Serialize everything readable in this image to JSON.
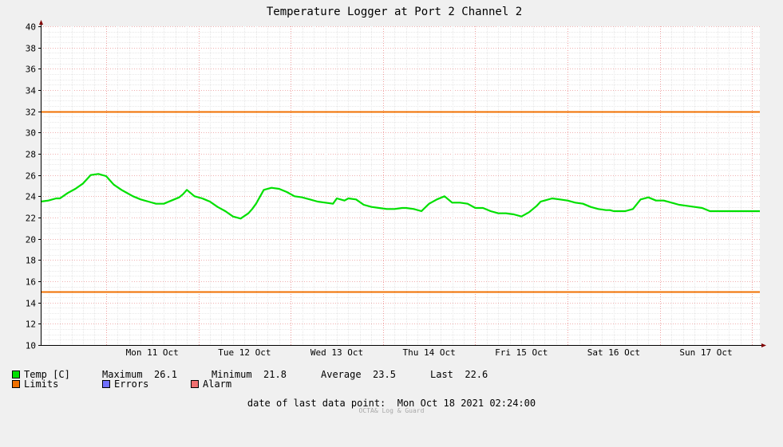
{
  "chart_data": {
    "type": "line",
    "title": "Temperature Logger at Port 2 Channel 2",
    "x_unit": "hours from Mon 11 Oct 00:00",
    "xlim": [
      -17,
      170
    ],
    "ylim": [
      10,
      40
    ],
    "y_ticks": [
      10,
      12,
      14,
      16,
      18,
      20,
      22,
      24,
      26,
      28,
      30,
      32,
      34,
      36,
      38,
      40
    ],
    "day_labels": [
      "Mon 11 Oct",
      "Tue 12 Oct",
      "Wed 13 Oct",
      "Thu 14 Oct",
      "Fri 15 Oct",
      "Sat 16 Oct",
      "Sun 17 Oct"
    ],
    "day_label_positions": [
      12,
      36,
      60,
      84,
      108,
      132,
      156
    ],
    "series": [
      {
        "name": "Temp [C]",
        "color": "#00e000",
        "x": [
          -17,
          -15,
          -13,
          -12,
          -10,
          -8,
          -6,
          -4,
          -2,
          0,
          2,
          4,
          5,
          7,
          9,
          11,
          13,
          15,
          17,
          19,
          20,
          21,
          23,
          25,
          27,
          29,
          31,
          33,
          35,
          37,
          38,
          39,
          41,
          43,
          45,
          47,
          49,
          51,
          53,
          55,
          57,
          59,
          60,
          62,
          63,
          65,
          67,
          69,
          71,
          73,
          75,
          77,
          78,
          80,
          82,
          84,
          86,
          88,
          90,
          92,
          94,
          96,
          98,
          100,
          102,
          104,
          106,
          108,
          110,
          112,
          113,
          114,
          116,
          118,
          120,
          122,
          124,
          126,
          128,
          130,
          131,
          132,
          133,
          135,
          137,
          139,
          141,
          143,
          145,
          147,
          149,
          151,
          153,
          155,
          157,
          158,
          159,
          160,
          162,
          164,
          166,
          168,
          170
        ],
        "y": [
          23.5,
          23.6,
          23.8,
          23.8,
          24.3,
          24.7,
          25.2,
          26.0,
          26.1,
          25.9,
          25.1,
          24.6,
          24.4,
          24.0,
          23.7,
          23.5,
          23.3,
          23.3,
          23.6,
          23.9,
          24.2,
          24.6,
          24.0,
          23.8,
          23.5,
          23.0,
          22.6,
          22.1,
          21.9,
          22.4,
          22.8,
          23.3,
          24.6,
          24.8,
          24.7,
          24.4,
          24.0,
          23.9,
          23.7,
          23.5,
          23.4,
          23.3,
          23.8,
          23.6,
          23.8,
          23.7,
          23.2,
          23.0,
          22.9,
          22.8,
          22.8,
          22.9,
          22.9,
          22.8,
          22.6,
          23.3,
          23.7,
          24.0,
          23.4,
          23.4,
          23.3,
          22.9,
          22.9,
          22.6,
          22.4,
          22.4,
          22.3,
          22.1,
          22.5,
          23.1,
          23.5,
          23.6,
          23.8,
          23.7,
          23.6,
          23.4,
          23.3,
          23.0,
          22.8,
          22.7,
          22.7,
          22.6,
          22.6,
          22.6,
          22.8,
          23.7,
          23.9,
          23.6,
          23.6,
          23.4,
          23.2,
          23.1,
          23.0,
          22.9,
          22.6,
          22.6,
          22.6,
          22.6,
          22.6,
          22.6,
          22.6,
          22.6,
          22.6
        ]
      }
    ],
    "limits": [
      32,
      15
    ],
    "limit_color": "#f07000",
    "grid": true
  },
  "legend": {
    "temp": {
      "label": "Temp [C]",
      "color": "#00e000"
    },
    "limits": {
      "label": "Limits",
      "color": "#f07000"
    },
    "errors": {
      "label": "Errors",
      "color": "#7070ff"
    },
    "alarm": {
      "label": "Alarm",
      "color": "#f07070"
    },
    "stats": {
      "max_label": "Maximum",
      "max_value": "26.1",
      "min_label": "Minimum",
      "min_value": "21.8",
      "avg_label": "Average",
      "avg_value": "23.5",
      "last_label": "Last",
      "last_value": "22.6"
    }
  },
  "footer": {
    "date_label": "date of last data point:",
    "date_value": "Mon Oct 18 2021 02:24:00"
  },
  "credit": "OCTA& Log & Guard"
}
